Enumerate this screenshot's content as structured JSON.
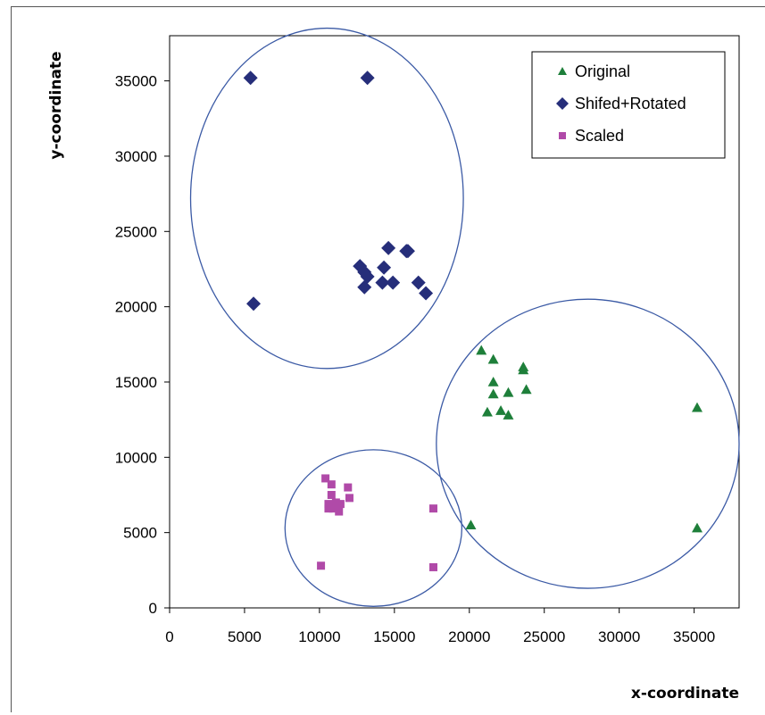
{
  "chart_data": {
    "type": "scatter",
    "xlabel": "x-coordinate",
    "ylabel": "y-coordinate",
    "xlim": [
      0,
      38000
    ],
    "ylim": [
      0,
      38000
    ],
    "xticks": [
      0,
      5000,
      10000,
      15000,
      20000,
      25000,
      30000,
      35000
    ],
    "yticks": [
      0,
      5000,
      10000,
      15000,
      20000,
      25000,
      30000,
      35000
    ],
    "grid": false,
    "legend_position": "top-right",
    "series": [
      {
        "name": "Original",
        "marker": "triangle",
        "color": "#1e7f3a",
        "points": [
          [
            20800,
            17100
          ],
          [
            21600,
            16500
          ],
          [
            23600,
            16000
          ],
          [
            23600,
            15800
          ],
          [
            21600,
            15000
          ],
          [
            23800,
            14500
          ],
          [
            21600,
            14200
          ],
          [
            22600,
            14300
          ],
          [
            21200,
            13000
          ],
          [
            22100,
            13100
          ],
          [
            22600,
            12800
          ],
          [
            35200,
            13300
          ],
          [
            20100,
            5500
          ],
          [
            35200,
            5300
          ]
        ]
      },
      {
        "name": "Shifed+Rotated",
        "marker": "diamond",
        "color": "#262e7a",
        "points": [
          [
            5400,
            35200
          ],
          [
            13200,
            35200
          ],
          [
            5600,
            20200
          ],
          [
            14600,
            23900
          ],
          [
            15800,
            23700
          ],
          [
            15900,
            23700
          ],
          [
            12700,
            22700
          ],
          [
            14300,
            22600
          ],
          [
            13000,
            22300
          ],
          [
            13200,
            22000
          ],
          [
            14200,
            21600
          ],
          [
            14900,
            21600
          ],
          [
            16600,
            21600
          ],
          [
            13000,
            21300
          ],
          [
            17100,
            20900
          ]
        ]
      },
      {
        "name": "Scaled",
        "marker": "square",
        "color": "#b04aa8",
        "points": [
          [
            10400,
            8600
          ],
          [
            10800,
            8200
          ],
          [
            11900,
            8000
          ],
          [
            10800,
            7500
          ],
          [
            12000,
            7300
          ],
          [
            11100,
            7000
          ],
          [
            10600,
            6900
          ],
          [
            11400,
            6900
          ],
          [
            10900,
            6600
          ],
          [
            10600,
            6600
          ],
          [
            11300,
            6400
          ],
          [
            17600,
            6600
          ],
          [
            10100,
            2800
          ],
          [
            17600,
            2700
          ]
        ]
      }
    ],
    "clusters": [
      {
        "color": "#3b5aa5",
        "cx": 10500,
        "cy": 27200,
        "rx": 9100,
        "ry": 11300
      },
      {
        "color": "#3b5aa5",
        "cx": 27900,
        "cy": 10900,
        "rx": 10100,
        "ry": 9600
      },
      {
        "color": "#3b5aa5",
        "cx": 13600,
        "cy": 5300,
        "rx": 5900,
        "ry": 5200
      }
    ]
  }
}
